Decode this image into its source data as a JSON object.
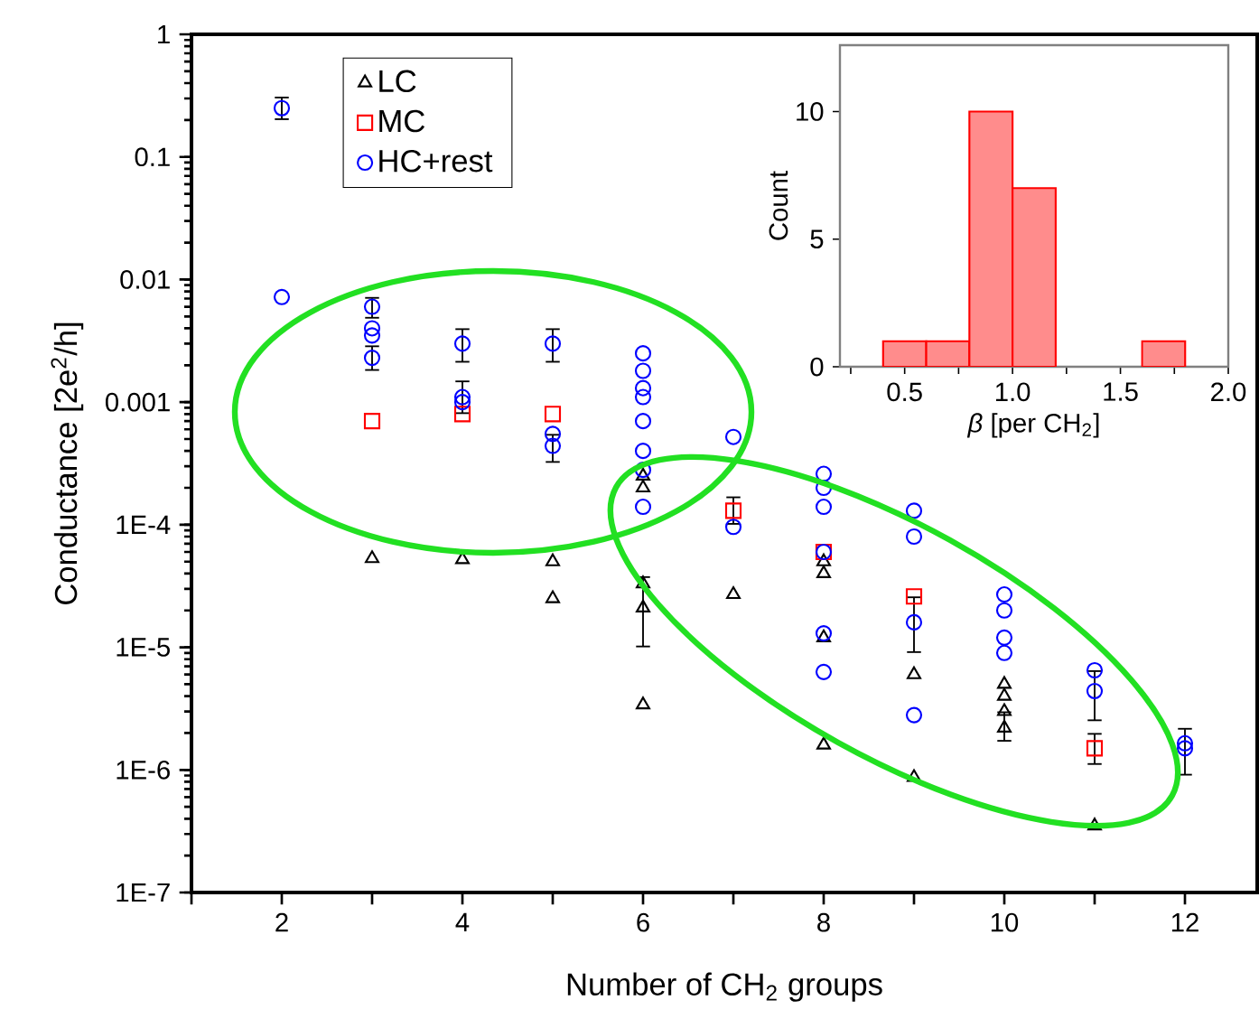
{
  "chart_data": [
    {
      "type": "scatter",
      "xlabel": "Number of CH$_{2}$ groups",
      "ylabel": "Conductance [2e$^{2}$/h]",
      "log": "y",
      "xlim": [
        1,
        12.8
      ],
      "ylim": [
        1e-07,
        1
      ],
      "xticks": [
        {
          "value": 1,
          "label": null
        },
        2,
        {
          "value": 3,
          "label": null
        },
        4,
        {
          "value": 5,
          "label": null
        },
        6,
        {
          "value": 7,
          "label": null
        },
        8,
        {
          "value": 9,
          "label": null
        },
        10,
        {
          "value": 11,
          "label": null
        },
        12
      ],
      "yticks": [
        {
          "value": 1e-07,
          "label": "1E-7"
        },
        {
          "value": 1e-06,
          "label": "1E-6"
        },
        {
          "value": 1e-05,
          "label": "1E-5"
        },
        {
          "value": 0.0001,
          "label": "1E-4"
        },
        0.001,
        0.01,
        0.1,
        1
      ],
      "legend": "top left",
      "series": [
        {
          "name": "LC",
          "color": "#000000",
          "marker": "triangle",
          "x": [
            3,
            4,
            5,
            5,
            6,
            6,
            6,
            6,
            6,
            7,
            8,
            8,
            8,
            8,
            9,
            9,
            10,
            10,
            10,
            10,
            11
          ],
          "values": [
            5.3e-05,
            5.2e-05,
            5e-05,
            2.5e-05,
            3.3e-05,
            2.1e-05,
            3.4e-06,
            0.00025,
            0.0002,
            2.7e-05,
            1.6e-06,
            1.2e-05,
            5e-05,
            4e-05,
            8.7e-07,
            6e-06,
            2.2e-06,
            3e-06,
            4e-06,
            5e-06,
            3.5e-07
          ],
          "errors": [
            null,
            null,
            null,
            null,
            null,
            [
              1e-05,
              3.8e-05
            ],
            null,
            null,
            null,
            null,
            null,
            null,
            null,
            null,
            null,
            null,
            [
              1.7e-06,
              3e-06
            ],
            null,
            null,
            null,
            null
          ]
        },
        {
          "name": "MC",
          "color": "#ff0000",
          "marker": "square",
          "x": [
            3,
            4,
            5,
            7,
            8,
            9,
            11
          ],
          "values": [
            0.0007,
            0.0008,
            0.0008,
            0.00013,
            6e-05,
            2.6e-05,
            1.5e-06
          ],
          "errors": [
            null,
            null,
            null,
            [
              0.0001,
              0.00017
            ],
            null,
            null,
            [
              1.1e-06,
              2e-06
            ]
          ]
        },
        {
          "name": "HC+rest",
          "color": "#0000ff",
          "marker": "circle",
          "x": [
            2,
            2,
            3,
            3,
            3,
            3,
            4,
            4,
            4,
            5,
            5,
            5,
            6,
            6,
            6,
            6,
            6,
            6,
            6,
            6,
            7,
            7,
            8,
            8,
            8,
            8,
            8,
            8,
            9,
            9,
            9,
            9,
            10,
            10,
            10,
            10,
            11,
            11,
            12,
            12
          ],
          "values": [
            0.25,
            0.0072,
            0.006,
            0.004,
            0.0035,
            0.0023,
            0.003,
            0.0011,
            0.001,
            0.003,
            0.00055,
            0.00044,
            0.0025,
            0.0018,
            0.0013,
            0.0011,
            0.0007,
            0.0004,
            0.00028,
            0.00014,
            0.00052,
            9.6e-05,
            0.00026,
            0.0002,
            0.00014,
            6e-05,
            1.3e-05,
            6.3e-06,
            0.00013,
            8e-05,
            1.6e-05,
            2.8e-06,
            2.7e-05,
            2e-05,
            1.2e-05,
            9e-06,
            6.5e-06,
            4.4e-06,
            1.5e-06,
            1.65e-06
          ],
          "errors": [
            [
              0.2,
              0.31
            ],
            null,
            [
              0.0048,
              0.0072
            ],
            null,
            null,
            [
              0.0018,
              0.0029
            ],
            [
              0.0021,
              0.004
            ],
            [
              0.0008,
              0.0015
            ],
            null,
            [
              0.0021,
              0.004
            ],
            null,
            [
              0.00032,
              0.00055
            ],
            null,
            null,
            null,
            null,
            null,
            null,
            null,
            null,
            null,
            null,
            null,
            null,
            null,
            null,
            null,
            null,
            null,
            null,
            [
              9e-06,
              2.6e-05
            ],
            null,
            null,
            null,
            null,
            null,
            null,
            [
              2.5e-06,
              6.5e-06
            ],
            [
              9e-07,
              2.2e-06
            ],
            null
          ]
        }
      ]
    },
    {
      "type": "histogram",
      "xlabel": "*β* [per CH$_{2}$]",
      "ylabel": "Count",
      "color": "#ff0000",
      "bins": [
        0.4,
        0.6,
        0.8,
        1.0,
        1.2,
        1.4,
        1.6,
        1.8
      ],
      "values": [
        1,
        1,
        10,
        7,
        0,
        0,
        1
      ],
      "xlim": [
        0.2,
        2.0
      ],
      "ylim": [
        0,
        12.6
      ],
      "xticks": [
        {
          "value": 0.25,
          "label": null
        },
        0.5,
        {
          "value": 0.75,
          "label": null
        },
        {
          "value": 1.0,
          "label": "1.0"
        },
        {
          "value": 1.25,
          "label": null
        },
        1.5,
        {
          "value": 1.75,
          "label": null
        },
        {
          "value": 2.0,
          "label": "2.0"
        }
      ],
      "yticks": [
        0,
        5,
        10
      ]
    }
  ]
}
